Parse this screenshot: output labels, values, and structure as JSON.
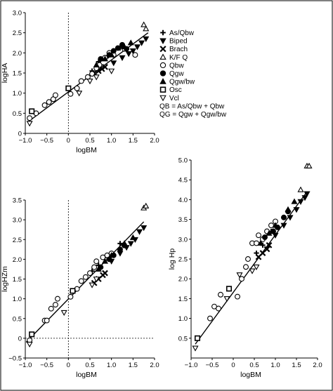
{
  "chart_data": [
    {
      "type": "scatter",
      "xlabel": "logBM",
      "ylabel": "logHA",
      "xlim": [
        -1.0,
        2.0
      ],
      "ylim": [
        0,
        3.0
      ],
      "xticks": [
        "−1.0",
        "−0.5",
        "0",
        "0.5",
        "1.0",
        "1.5",
        "2.0"
      ],
      "yticks": [
        "0",
        "0.5",
        "1.0",
        "1.5",
        "2.0",
        "2.5",
        "3.0"
      ],
      "grid": false,
      "reference_lines": {
        "x": 0
      },
      "fit_line": {
        "x": [
          -0.92,
          1.85
        ],
        "y": [
          0.3,
          2.5
        ]
      },
      "series": [
        {
          "name": "As/Qbw",
          "marker": "plus",
          "x": [
            0.55,
            0.7,
            0.88,
            1.2
          ],
          "y": [
            1.55,
            1.78,
            1.88,
            2.12
          ]
        },
        {
          "name": "Biped",
          "marker": "triangle-down",
          "x": [
            1.05,
            1.25,
            1.4,
            1.5,
            1.6,
            1.7,
            1.8
          ],
          "y": [
            1.75,
            1.88,
            1.98,
            2.05,
            2.15,
            2.25,
            2.35
          ]
        },
        {
          "name": "Brach",
          "marker": "x",
          "x": [
            0.6,
            0.7,
            0.78,
            0.85
          ],
          "y": [
            1.5,
            1.55,
            1.6,
            1.65
          ]
        },
        {
          "name": "K/F Q",
          "marker": "triangle-up-open",
          "x": [
            1.75,
            1.8
          ],
          "y": [
            2.7,
            2.6
          ]
        },
        {
          "name": "Qbw",
          "marker": "circle-open",
          "x": [
            -0.9,
            -0.75,
            -0.55,
            -0.45,
            -0.35,
            -0.3,
            0.05,
            0.2,
            0.3,
            0.45,
            0.55,
            0.65,
            0.72,
            0.85,
            0.95,
            1.05,
            1.3,
            1.55
          ],
          "y": [
            0.38,
            0.5,
            0.7,
            0.78,
            0.85,
            0.95,
            0.98,
            1.12,
            1.3,
            1.4,
            1.48,
            1.62,
            1.7,
            1.88,
            2.0,
            1.95,
            2.1,
            1.95
          ]
        },
        {
          "name": "Qgw",
          "marker": "circle-filled",
          "x": [
            0.75,
            0.95,
            1.05,
            1.15,
            1.25,
            1.35
          ],
          "y": [
            1.85,
            1.95,
            2.05,
            2.12,
            2.2,
            2.1
          ]
        },
        {
          "name": "Qgw/bw",
          "marker": "triangle-up-filled",
          "x": [
            0.65,
            0.85,
            1.0,
            1.3,
            1.45
          ],
          "y": [
            1.7,
            1.85,
            1.95,
            2.15,
            2.25
          ]
        },
        {
          "name": "Osc",
          "marker": "square-open",
          "x": [
            -0.85,
            0.0
          ],
          "y": [
            0.55,
            1.12
          ]
        },
        {
          "name": "Vcl",
          "marker": "triangle-down-open",
          "x": [
            -0.9,
            0.25,
            0.5,
            0.65,
            1.0
          ],
          "y": [
            0.25,
            1.0,
            1.3,
            1.4,
            1.55
          ]
        }
      ]
    },
    {
      "type": "scatter",
      "xlabel": "logBM",
      "ylabel": "logHZm",
      "xlim": [
        -1.0,
        2.0
      ],
      "ylim": [
        -0.5,
        3.5
      ],
      "xticks": [
        "−1.0",
        "−0.5",
        "0",
        "0.5",
        "1.0",
        "1.5",
        "2.0"
      ],
      "yticks": [
        "−0.5",
        "0",
        "0.5",
        "1.0",
        "1.5",
        "2.0",
        "2.5",
        "3.0",
        "3.5"
      ],
      "grid": false,
      "reference_lines": {
        "x": 0,
        "y": 0
      },
      "fit_line": {
        "x": [
          -0.98,
          1.75
        ],
        "y": [
          -0.1,
          2.95
        ]
      },
      "series": [
        {
          "name": "As/Qbw",
          "marker": "plus",
          "x": [
            0.55,
            0.7,
            0.9,
            1.2
          ],
          "y": [
            1.7,
            1.85,
            2.05,
            2.4
          ]
        },
        {
          "name": "Biped",
          "marker": "triangle-down",
          "x": [
            1.0,
            1.2,
            1.35,
            1.45,
            1.55,
            1.65,
            1.75
          ],
          "y": [
            1.95,
            2.15,
            2.3,
            2.4,
            2.5,
            2.7,
            2.8
          ]
        },
        {
          "name": "Brach",
          "marker": "x",
          "x": [
            0.6,
            0.7,
            0.8,
            0.85
          ],
          "y": [
            1.4,
            1.5,
            1.6,
            1.65
          ]
        },
        {
          "name": "K/F Q",
          "marker": "triangle-up-open",
          "x": [
            1.75,
            1.8
          ],
          "y": [
            3.3,
            3.35
          ]
        },
        {
          "name": "Qbw",
          "marker": "circle-open",
          "x": [
            -0.9,
            -0.55,
            -0.5,
            -0.4,
            -0.3,
            -0.25,
            0.05,
            0.2,
            0.3,
            0.4,
            0.5,
            0.6,
            0.65,
            0.8,
            0.9,
            1.0
          ],
          "y": [
            -0.05,
            0.45,
            0.45,
            0.75,
            0.85,
            1.0,
            1.05,
            1.25,
            1.45,
            1.55,
            1.65,
            1.8,
            1.95,
            2.05,
            2.1,
            2.15
          ]
        },
        {
          "name": "Qgw",
          "marker": "circle-filled",
          "x": [
            0.75,
            0.95,
            1.05,
            1.2,
            1.3
          ],
          "y": [
            1.8,
            2.0,
            2.1,
            2.25,
            2.35
          ]
        },
        {
          "name": "Qgw/bw",
          "marker": "triangle-up-filled",
          "x": [
            0.7,
            0.85,
            1.0,
            1.3,
            1.5
          ],
          "y": [
            1.75,
            1.95,
            2.1,
            2.4,
            2.55
          ]
        },
        {
          "name": "Osc",
          "marker": "square-open",
          "x": [
            -0.85,
            0.1
          ],
          "y": [
            0.1,
            1.2
          ]
        },
        {
          "name": "Vcl",
          "marker": "triangle-down-open",
          "x": [
            -0.9,
            -0.1,
            0.55,
            0.65
          ],
          "y": [
            -0.15,
            0.65,
            1.35,
            1.5
          ]
        }
      ]
    },
    {
      "type": "scatter",
      "xlabel": "logBM",
      "ylabel": "log Hp",
      "xlim": [
        -1.0,
        2.0
      ],
      "ylim": [
        0,
        5.0
      ],
      "xticks": [
        "−1.0",
        "−0.5",
        "0",
        "0.5",
        "1.0",
        "1.5",
        "2.0"
      ],
      "yticks": [
        "0.5",
        "1.0",
        "1.5",
        "2.0",
        "2.5",
        "3.0",
        "3.5",
        "4.0",
        "4.5",
        "5.0"
      ],
      "grid": false,
      "fit_line": {
        "x": [
          -0.9,
          1.75
        ],
        "y": [
          0.35,
          4.2
        ]
      },
      "series": [
        {
          "name": "As/Qbw",
          "marker": "plus",
          "x": [
            0.55,
            0.7,
            0.9,
            1.2
          ],
          "y": [
            2.65,
            2.85,
            3.2,
            3.55
          ]
        },
        {
          "name": "Biped",
          "marker": "triangle-down",
          "x": [
            1.0,
            1.2,
            1.35,
            1.5,
            1.6,
            1.7,
            1.75
          ],
          "y": [
            3.1,
            3.35,
            3.55,
            3.75,
            3.95,
            4.05,
            4.15
          ]
        },
        {
          "name": "Brach",
          "marker": "x",
          "x": [
            0.6,
            0.7,
            0.8,
            0.85
          ],
          "y": [
            2.55,
            2.65,
            2.75,
            2.85
          ]
        },
        {
          "name": "K/F Q",
          "marker": "triangle-up-open",
          "x": [
            1.6,
            1.75,
            1.8
          ],
          "y": [
            4.25,
            4.85,
            4.85
          ]
        },
        {
          "name": "Qbw",
          "marker": "circle-open",
          "x": [
            -0.55,
            -0.45,
            -0.35,
            -0.3,
            -0.1,
            0.1,
            0.2,
            0.3,
            0.35,
            0.45,
            0.55,
            0.6,
            0.7,
            0.8,
            0.9,
            1.0
          ],
          "y": [
            1.0,
            1.3,
            1.25,
            1.6,
            1.75,
            1.55,
            2.0,
            2.3,
            2.5,
            2.9,
            2.9,
            3.1,
            3.0,
            3.2,
            3.35,
            3.45
          ]
        },
        {
          "name": "Qgw",
          "marker": "circle-filled",
          "x": [
            0.75,
            0.95,
            1.05,
            1.2,
            1.3
          ],
          "y": [
            3.05,
            3.2,
            3.3,
            3.55,
            3.7
          ]
        },
        {
          "name": "Qgw/bw",
          "marker": "triangle-up-filled",
          "x": [
            0.65,
            0.85,
            1.0,
            1.3,
            1.45
          ],
          "y": [
            2.9,
            3.15,
            3.35,
            3.75,
            3.95
          ]
        },
        {
          "name": "Osc",
          "marker": "square-open",
          "x": [
            -0.85,
            -0.1
          ],
          "y": [
            0.5,
            1.75
          ]
        },
        {
          "name": "Vcl",
          "marker": "triangle-down-open",
          "x": [
            -0.9,
            -0.15,
            0.15,
            0.45,
            0.55
          ],
          "y": [
            0.25,
            1.5,
            2.1,
            2.2,
            2.3
          ]
        }
      ]
    }
  ],
  "legend": {
    "placement": "right of top panel",
    "entries": [
      {
        "label": "As/Qbw",
        "marker": "plus"
      },
      {
        "label": "Biped",
        "marker": "triangle-down"
      },
      {
        "label": "Brach",
        "marker": "x"
      },
      {
        "label": "K/F Q",
        "marker": "triangle-up-open"
      },
      {
        "label": "Qbw",
        "marker": "circle-open"
      },
      {
        "label": "Qgw",
        "marker": "circle-filled"
      },
      {
        "label": "Qgw/bw",
        "marker": "triangle-up-filled"
      },
      {
        "label": "Osc",
        "marker": "square-open"
      },
      {
        "label": "Vcl",
        "marker": "triangle-down-open"
      }
    ],
    "notes": [
      "QB = As/Qbw + Qbw",
      "QG = Qgw + Qgw/bw"
    ]
  }
}
